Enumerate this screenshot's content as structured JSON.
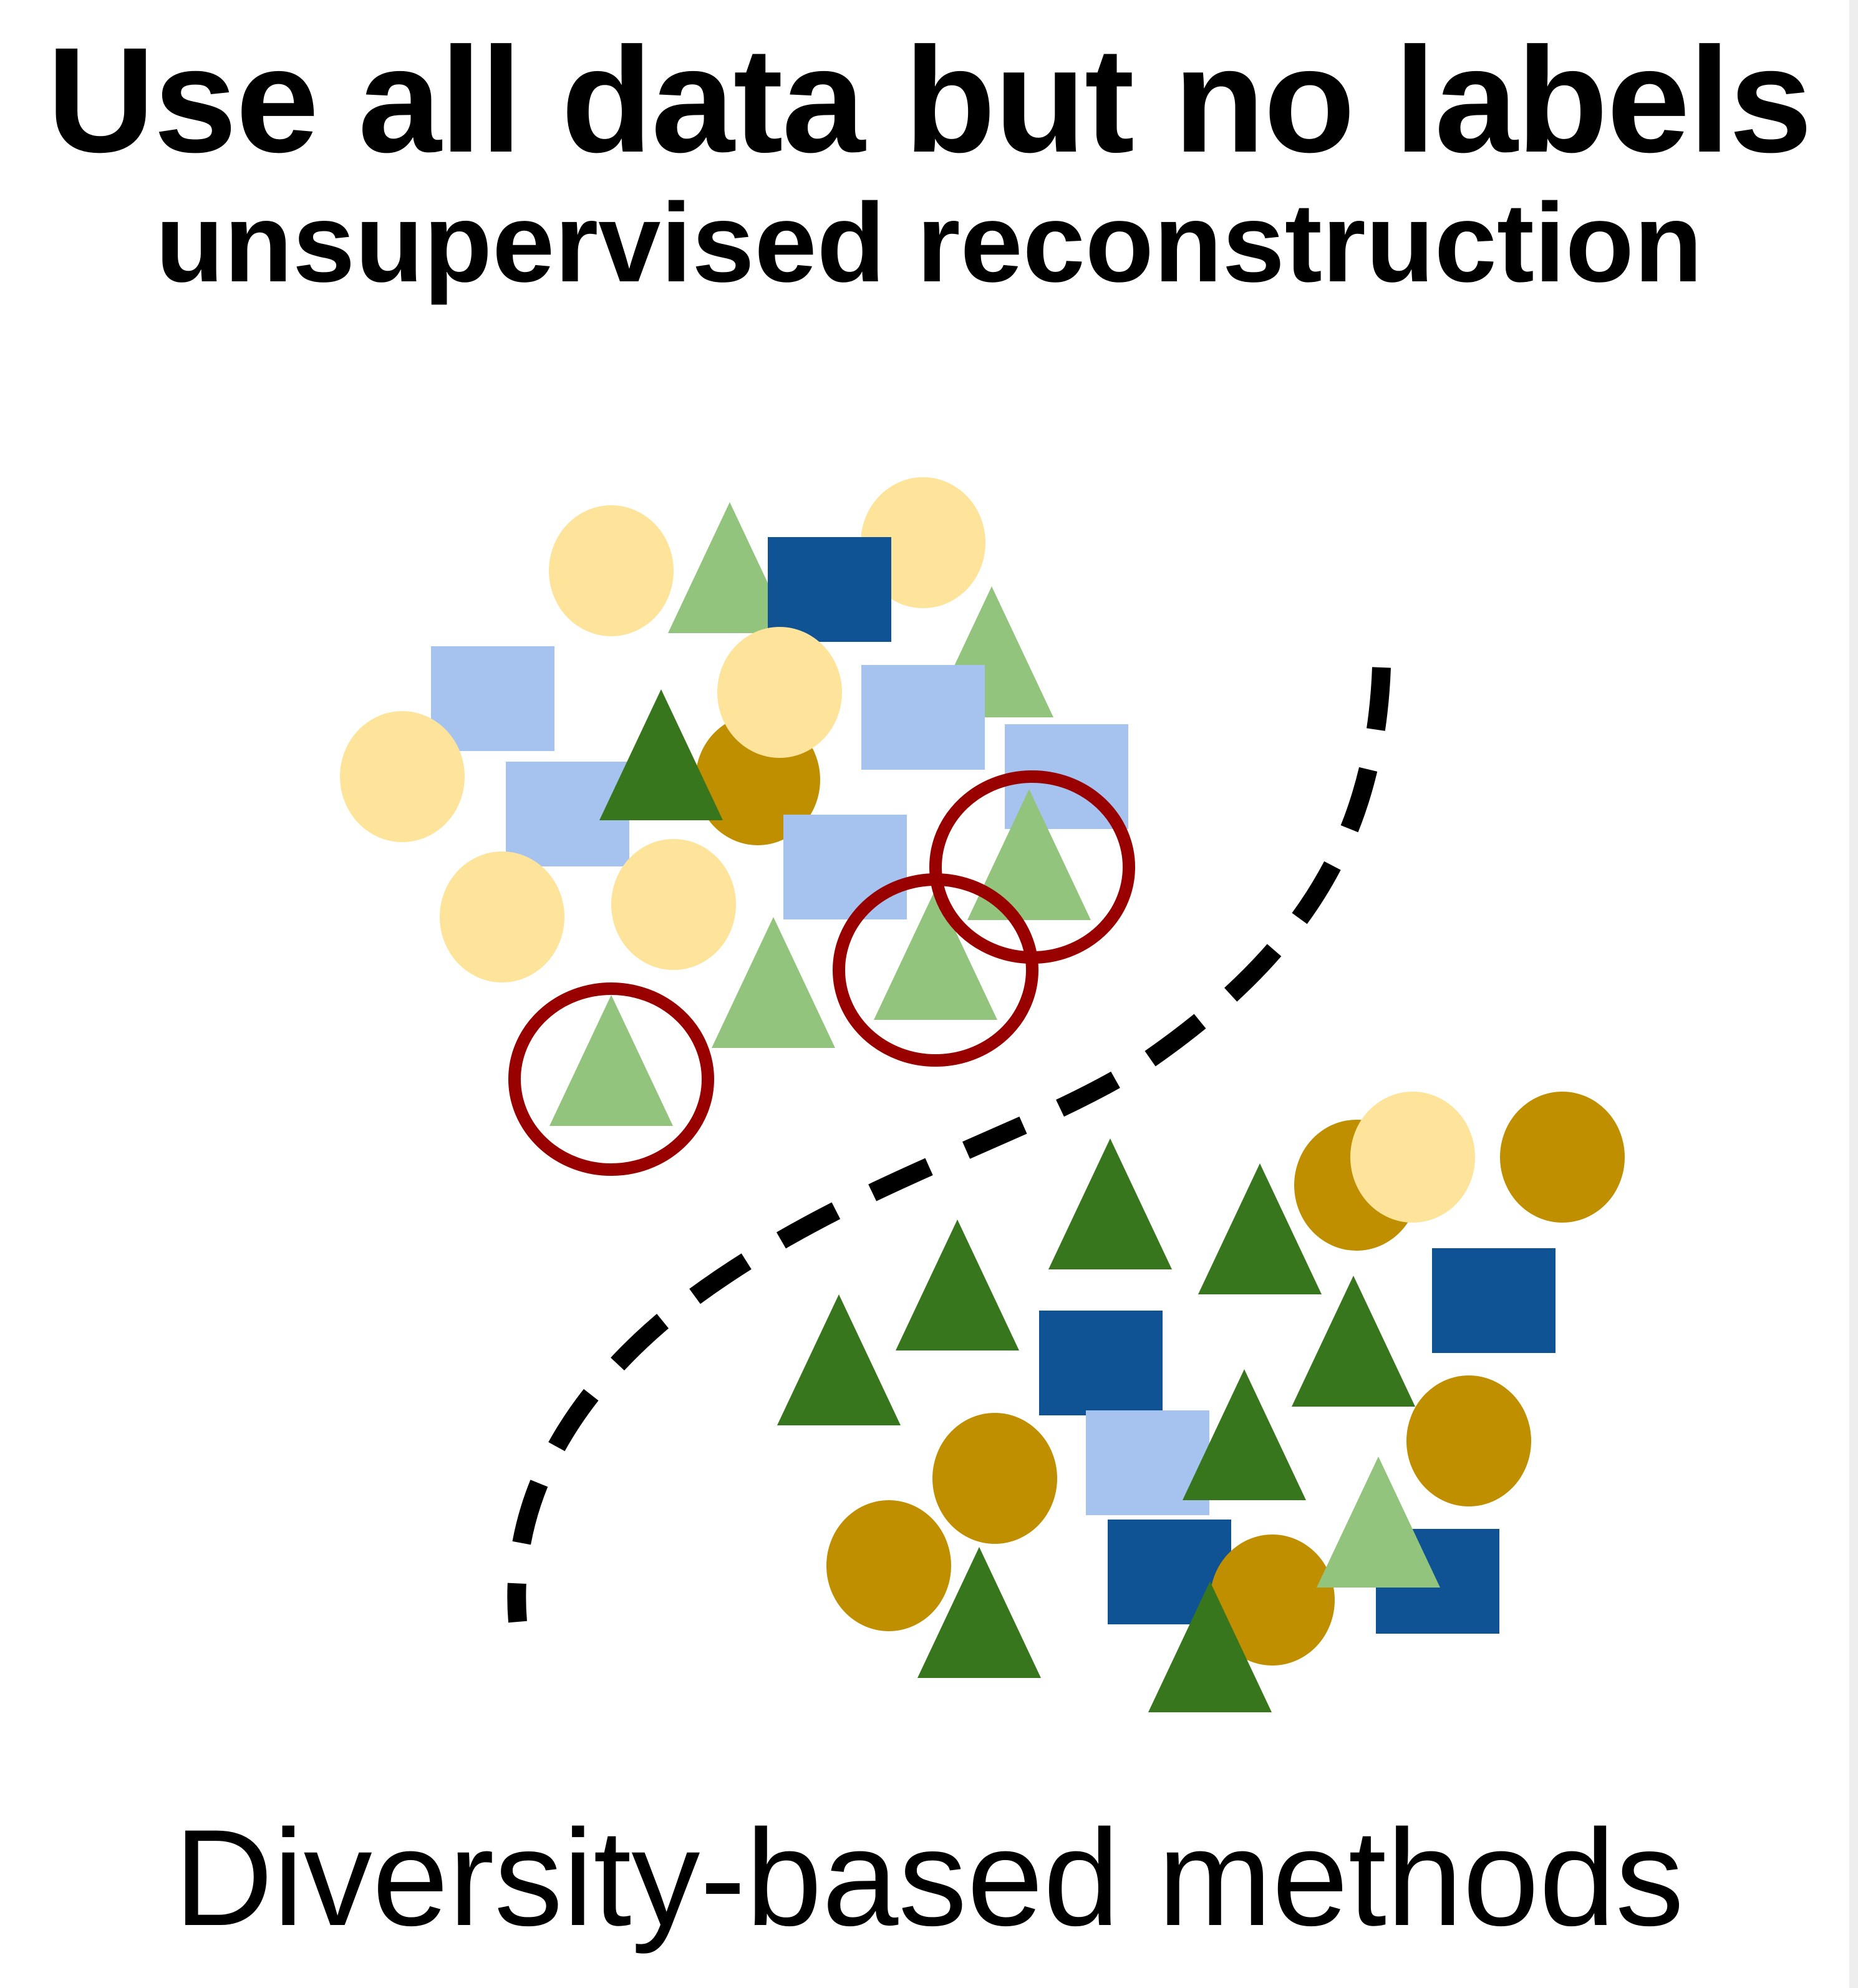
{
  "title": "Use all data but no labels",
  "subtitle": "unsupervised reconstruction",
  "caption": "Diversity-based methods",
  "colors": {
    "light_yellow": "#fde49a",
    "gold": "#bf8f00",
    "light_blue": "#a6c3f0",
    "dark_blue": "#0f5394",
    "light_green": "#93c47d",
    "dark_green": "#38761d",
    "selection_ring": "#990000",
    "boundary": "#000000"
  },
  "shape_types": [
    "circle",
    "square",
    "triangle"
  ],
  "selected_items_count": 3
}
